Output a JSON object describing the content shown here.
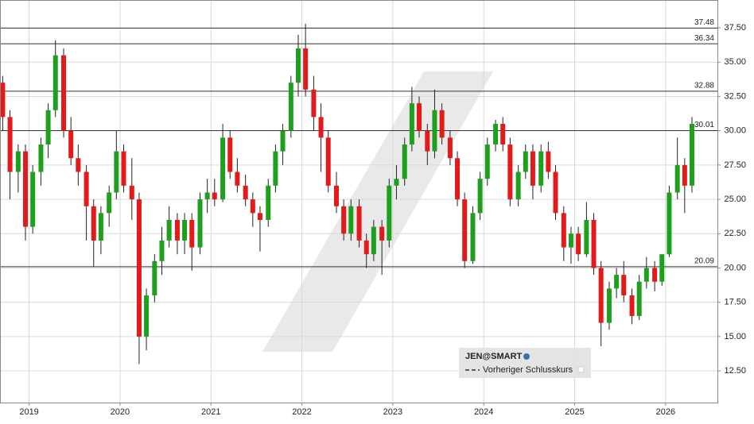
{
  "chart_data": {
    "type": "candlestick",
    "xlim": [
      2018.68,
      2026.57
    ],
    "ylim": [
      10.19,
      39.53
    ],
    "xticks": [
      2019,
      2020,
      2021,
      2022,
      2023,
      2024,
      2025,
      2026
    ],
    "yticks": [
      {
        "value": 12.5,
        "label": "12.50"
      },
      {
        "value": 15,
        "label": "15.00"
      },
      {
        "value": 17.5,
        "label": "17.50"
      },
      {
        "value": 20,
        "label": "20.00"
      },
      {
        "value": 22.5,
        "label": "22.50"
      },
      {
        "value": 25,
        "label": "25.00"
      },
      {
        "value": 27.5,
        "label": "27.50"
      },
      {
        "value": 30,
        "label": "30.00"
      },
      {
        "value": 32.5,
        "label": "32.50"
      },
      {
        "value": 35,
        "label": "35.00"
      },
      {
        "value": 37.5,
        "label": "37.50"
      }
    ],
    "grid": true,
    "levels": [
      37.48,
      36.34,
      32.88,
      30.01,
      20.09
    ],
    "x": [
      2018.71,
      2018.79,
      2018.88,
      2018.96,
      2019.04,
      2019.13,
      2019.21,
      2019.29,
      2019.38,
      2019.46,
      2019.54,
      2019.63,
      2019.71,
      2019.79,
      2019.88,
      2019.96,
      2020.04,
      2020.13,
      2020.21,
      2020.29,
      2020.38,
      2020.46,
      2020.54,
      2020.63,
      2020.71,
      2020.79,
      2020.88,
      2020.96,
      2021.04,
      2021.13,
      2021.21,
      2021.29,
      2021.38,
      2021.46,
      2021.54,
      2021.63,
      2021.71,
      2021.79,
      2021.88,
      2021.96,
      2022.04,
      2022.13,
      2022.21,
      2022.29,
      2022.38,
      2022.46,
      2022.54,
      2022.63,
      2022.71,
      2022.79,
      2022.88,
      2022.96,
      2023.04,
      2023.13,
      2023.21,
      2023.29,
      2023.38,
      2023.46,
      2023.54,
      2023.63,
      2023.71,
      2023.79,
      2023.88,
      2023.96,
      2024.04,
      2024.13,
      2024.21,
      2024.29,
      2024.38,
      2024.46,
      2024.54,
      2024.63,
      2024.71,
      2024.79,
      2024.88,
      2024.96,
      2025.04,
      2025.13,
      2025.21,
      2025.29,
      2025.38,
      2025.46,
      2025.54,
      2025.63,
      2025.71,
      2025.79,
      2025.88,
      2025.96,
      2026.04,
      2026.13,
      2026.21,
      2026.29
    ],
    "series": [
      {
        "name": "JEN@SMART",
        "up_color": "#1ea01e",
        "down_color": "#e31a1a",
        "open": [
          33.5,
          31,
          27,
          28.5,
          23,
          27,
          29,
          31.5,
          35.5,
          30,
          28,
          27,
          24.5,
          22,
          24,
          25.5,
          28.5,
          26,
          25,
          15,
          18,
          20.5,
          22,
          23.5,
          22,
          23.5,
          21.5,
          25,
          25.5,
          25,
          29.5,
          27,
          26,
          25,
          24,
          23.5,
          26,
          28.5,
          30,
          33.5,
          36,
          33,
          31,
          29.5,
          26,
          24.5,
          22.5,
          24.5,
          22,
          21,
          23,
          22,
          26,
          26.5,
          29,
          32,
          30,
          28.5,
          31.5,
          29.5,
          28,
          25,
          20.5,
          24,
          26.5,
          29,
          30.5,
          29,
          25,
          27,
          28.5,
          26,
          28.5,
          27,
          24,
          21.5,
          22.5,
          21,
          23.5,
          20,
          16,
          18.5,
          19.5,
          18,
          16.5,
          19,
          20,
          19,
          21,
          25.5,
          27.5,
          26
        ],
        "high": [
          34,
          31.5,
          29,
          29,
          27.5,
          29.5,
          32,
          36.6,
          36,
          31,
          29,
          27.5,
          25,
          24.5,
          26,
          30,
          29,
          28,
          25.5,
          18.5,
          21,
          23,
          24.5,
          24,
          24,
          24,
          25.5,
          26.5,
          26.5,
          30.5,
          30,
          28,
          26.8,
          25.5,
          24.5,
          26.5,
          29,
          30.5,
          34,
          37,
          37.8,
          34,
          32,
          30,
          27,
          25,
          25,
          25,
          22.5,
          23.5,
          23.5,
          26.5,
          27.5,
          29.5,
          33.2,
          32.5,
          30.5,
          33,
          32,
          30,
          28.5,
          25.5,
          24.5,
          27,
          29.5,
          30.8,
          31,
          29.5,
          27.5,
          29,
          29,
          29,
          29.2,
          27.5,
          24.5,
          23,
          23,
          24.8,
          24,
          20.5,
          19,
          20,
          20.5,
          18.5,
          19.5,
          20.8,
          20.5,
          21,
          26,
          29.5,
          28,
          31
        ],
        "low": [
          30,
          25,
          25.5,
          22,
          22.5,
          26,
          28,
          31,
          29.5,
          27.5,
          26,
          22,
          20.1,
          21,
          23,
          25,
          25.5,
          23.5,
          13,
          14,
          17.5,
          19.5,
          21.5,
          21,
          21,
          19.8,
          21,
          24,
          24.5,
          24.8,
          26.5,
          25.5,
          24.5,
          23,
          21.2,
          23,
          25.5,
          27.5,
          29.5,
          32.5,
          32.5,
          30,
          27,
          25.5,
          24,
          22,
          22,
          21.5,
          20,
          20.5,
          19.5,
          21.5,
          25,
          26,
          28.5,
          29.5,
          27.5,
          28,
          29,
          27.5,
          24.5,
          20,
          20.3,
          23.5,
          26,
          28.5,
          28.5,
          24.5,
          24.5,
          26.5,
          25,
          25.5,
          26.5,
          23.5,
          20.5,
          20.3,
          20.5,
          20.8,
          19.5,
          14.3,
          15.5,
          17.8,
          17.5,
          15.9,
          16.2,
          18.5,
          18.3,
          18.7,
          20.8,
          25,
          24,
          25.5
        ],
        "close": [
          31,
          27,
          28.5,
          23,
          27,
          29,
          31.5,
          35.5,
          30,
          28,
          27,
          24.5,
          22,
          24,
          25.5,
          28.5,
          26,
          25,
          15,
          18,
          20.5,
          22,
          23.5,
          22,
          23.5,
          21.5,
          25,
          25.5,
          25,
          29.5,
          27,
          26,
          25,
          24,
          23.5,
          26,
          28.5,
          30,
          33.5,
          36,
          33,
          31,
          29.5,
          26,
          24.5,
          22.5,
          24.5,
          22,
          21,
          23,
          22,
          26,
          26.5,
          29,
          32,
          30,
          28.5,
          31.5,
          29.5,
          28,
          25,
          20.5,
          24,
          26.5,
          29,
          30.5,
          29,
          25,
          27,
          28.5,
          26,
          28.5,
          27,
          24,
          21.5,
          22.5,
          21,
          23.5,
          20,
          16,
          18.5,
          19.5,
          18,
          16.5,
          19,
          20,
          19,
          21,
          25.5,
          27.5,
          26,
          30.5
        ]
      }
    ],
    "legend_extra": "Vorheriger Schlusskurs"
  }
}
